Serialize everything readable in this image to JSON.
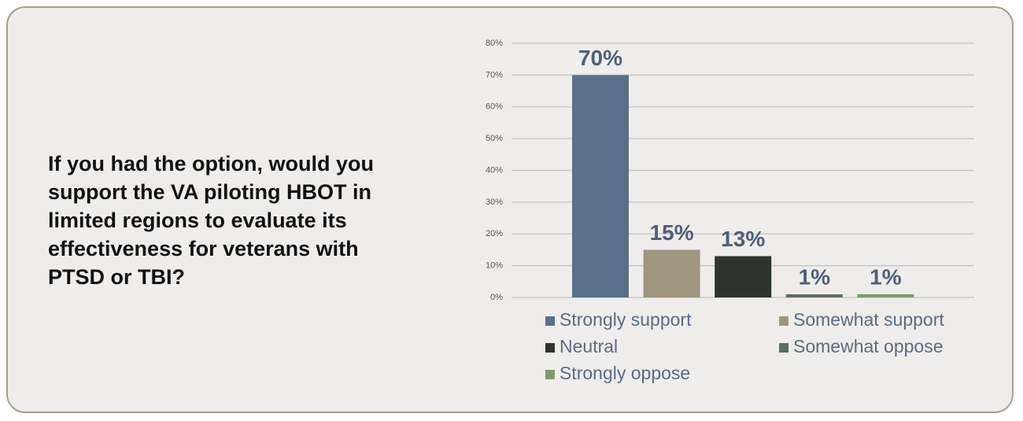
{
  "chart_data": {
    "type": "bar",
    "title": "If you had the option, would you support the VA piloting HBOT in limited regions to evaluate its effectiveness for veterans with PTSD or TBI?",
    "categories": [
      "Strongly support",
      "Somewhat support",
      "Neutral",
      "Somewhat oppose",
      "Strongly oppose"
    ],
    "values": [
      70,
      15,
      13,
      1,
      1
    ],
    "value_labels": [
      "70%",
      "15%",
      "13%",
      "1%",
      "1%"
    ],
    "colors": [
      "#5a7089",
      "#a0957e",
      "#2c3530",
      "#5d6e60",
      "#7f9a6e"
    ],
    "ylim": [
      0,
      80
    ],
    "yticks": [
      {
        "value": 0,
        "label": "0%"
      },
      {
        "value": 10,
        "label": "10%"
      },
      {
        "value": 20,
        "label": "20%"
      },
      {
        "value": 30,
        "label": "30%"
      },
      {
        "value": 40,
        "label": "40%"
      },
      {
        "value": 50,
        "label": "50%"
      },
      {
        "value": 60,
        "label": "60%"
      },
      {
        "value": 70,
        "label": "70%"
      },
      {
        "value": 80,
        "label": "80%"
      }
    ],
    "grid": true
  }
}
